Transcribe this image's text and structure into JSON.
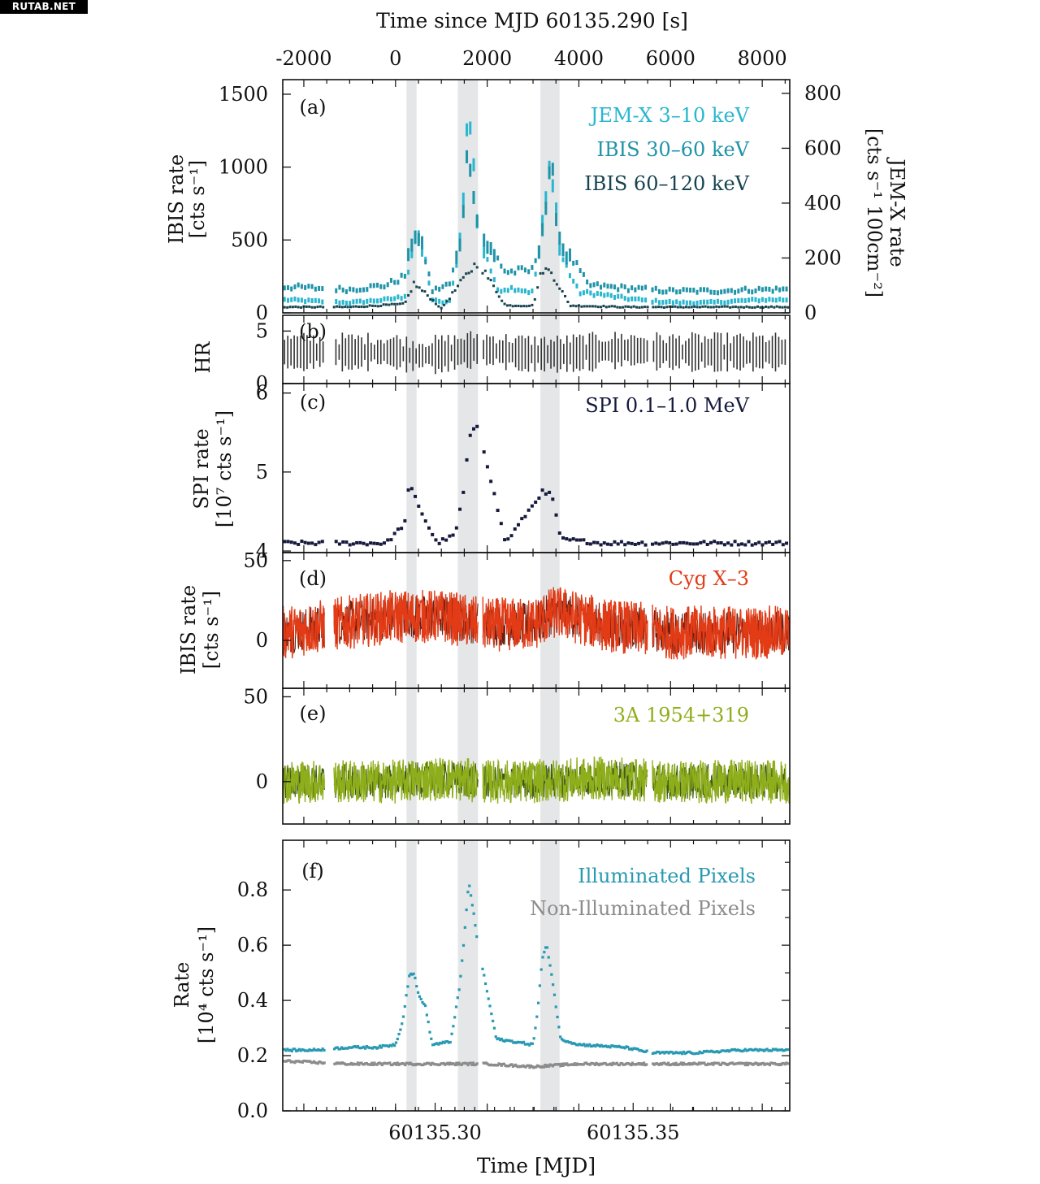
{
  "watermark": "RUTAB.NET",
  "top_axis": {
    "label": "Time since MJD 60135.290 [s]",
    "ticks": [
      "-2000",
      "0",
      "2000",
      "4000",
      "6000",
      "8000"
    ]
  },
  "bottom_axis": {
    "label": "Time [MJD]",
    "ticks": [
      "60135.30",
      "60135.35"
    ]
  },
  "colors": {
    "jemx": "#29b6cf",
    "ibis30": "#1f93a8",
    "ibis60": "#17434f",
    "hr": "#333333",
    "spi": "#161a3c",
    "cyg": "#e23b16",
    "cyg_dark": "#6e1d0f",
    "a1954": "#8fae1b",
    "a1954_dark": "#3f5a12",
    "illum": "#2899b2",
    "nonillum": "#8c8c8c",
    "band": "#e4e6e8"
  },
  "chart_data": [
    {
      "panel": "a",
      "type": "scatter",
      "label": "(a)",
      "ylabel_line1": "IBIS rate",
      "ylabel_line2": "[cts s⁻¹]",
      "yticks": [
        "0",
        "500",
        "1000",
        "1500"
      ],
      "ylim": [
        0,
        1600
      ],
      "right_ylabel_line1": "JEM-X rate",
      "right_ylabel_line2": "[cts s⁻¹ 100cm⁻²]",
      "right_yticks": [
        "0",
        "200",
        "400",
        "600",
        "800"
      ],
      "right_ylim": [
        0,
        850
      ],
      "legend": [
        "JEM-X 3–10 keV",
        "IBIS 30–60 keV",
        "IBIS 60–120 keV"
      ],
      "series": [
        {
          "name": "JEM-X 3–10 keV",
          "x": [
            -2400,
            -1800,
            -1000,
            -600,
            -200,
            200,
            400,
            600,
            800,
            1000,
            1200,
            1400,
            1600,
            1800,
            2200,
            2600,
            3000,
            3200,
            3400,
            3600,
            4000,
            4400,
            5000,
            5600,
            6200,
            6800,
            7400,
            8000,
            8500
          ],
          "y": [
            90,
            80,
            70,
            80,
            90,
            110,
            560,
            450,
            90,
            70,
            80,
            500,
            1450,
            600,
            160,
            170,
            140,
            600,
            1100,
            400,
            140,
            130,
            100,
            80,
            70,
            70,
            80,
            90,
            90
          ]
        },
        {
          "name": "IBIS 30–60 keV",
          "x": [
            -2400,
            -1800,
            -1000,
            -200,
            200,
            400,
            600,
            800,
            1200,
            1400,
            1600,
            1800,
            2400,
            3000,
            3200,
            3400,
            3600,
            4200,
            5000,
            6000,
            7000,
            8000,
            8500
          ],
          "y": [
            180,
            170,
            160,
            190,
            250,
            600,
            450,
            150,
            200,
            500,
            1200,
            600,
            280,
            290,
            600,
            1000,
            500,
            190,
            170,
            150,
            150,
            160,
            160
          ]
        },
        {
          "name": "IBIS 60–120 keV",
          "x": [
            -2400,
            -1000,
            200,
            400,
            700,
            1000,
            1600,
            1800,
            2400,
            3000,
            3200,
            3400,
            3800,
            5000,
            7000,
            8500
          ],
          "y": [
            40,
            40,
            60,
            200,
            120,
            30,
            280,
            350,
            50,
            50,
            300,
            280,
            50,
            40,
            40,
            40
          ]
        }
      ]
    },
    {
      "panel": "b",
      "type": "line",
      "label": "(b)",
      "ylabel": "HR",
      "yticks": [
        "0",
        "5"
      ],
      "ylim": [
        0,
        6.5
      ],
      "series": [
        {
          "name": "",
          "x": [
            -2400,
            -1200,
            0,
            400,
            1200,
            1800,
            2400,
            3000,
            3600,
            4200,
            5000,
            6000,
            7000,
            8500
          ],
          "y": [
            3.0,
            3.0,
            3.0,
            2.6,
            2.9,
            3.3,
            3.0,
            2.8,
            2.8,
            3.0,
            3.2,
            3.0,
            3.0,
            3.0
          ]
        }
      ]
    },
    {
      "panel": "c",
      "type": "scatter",
      "label": "(c)",
      "ylabel_line1": "SPI rate",
      "ylabel_line2": "[10⁷ cts s⁻¹]",
      "yticks": [
        "4",
        "5",
        "6"
      ],
      "ylim": [
        3.98,
        6.12
      ],
      "legend": [
        "SPI 0.1–1.0 MeV"
      ],
      "series": [
        {
          "name": "SPI 0.1–1.0 MeV",
          "x": [
            -2400,
            -1800,
            -1000,
            -200,
            200,
            300,
            450,
            600,
            900,
            1300,
            1500,
            1600,
            1700,
            1800,
            2400,
            3200,
            3300,
            3400,
            3600,
            4500,
            6000,
            8500
          ],
          "y": [
            4.1,
            4.1,
            4.1,
            4.1,
            4.35,
            4.85,
            4.65,
            4.45,
            4.1,
            4.2,
            4.8,
            5.4,
            5.55,
            5.6,
            4.1,
            4.75,
            4.7,
            4.75,
            4.15,
            4.1,
            4.1,
            4.1
          ]
        }
      ]
    },
    {
      "panel": "d",
      "type": "line",
      "label": "(d)",
      "ylabel_line1": "IBIS rate",
      "ylabel_line2": "[cts s⁻¹]",
      "yticks": [
        "0",
        "50"
      ],
      "ylim": [
        -30,
        55
      ],
      "legend": [
        "Cyg X–3"
      ],
      "series": [
        {
          "name": "Cyg X–3",
          "x": [
            -2400,
            -1400,
            0,
            1000,
            2000,
            3000,
            3500,
            4500,
            6000,
            7500,
            8500
          ],
          "y": [
            5,
            10,
            15,
            15,
            10,
            10,
            18,
            10,
            5,
            5,
            5
          ]
        }
      ]
    },
    {
      "panel": "e",
      "type": "line",
      "label": "(e)",
      "ylabel": "",
      "yticks": [
        "0",
        "50"
      ],
      "ylim": [
        -25,
        55
      ],
      "legend": [
        "3A 1954+319"
      ],
      "series": [
        {
          "name": "3A 1954+319",
          "x": [
            -2400,
            -1400,
            0,
            1000,
            2000,
            3000,
            4500,
            6000,
            7500,
            8500
          ],
          "y": [
            0,
            0,
            0,
            2,
            0,
            0,
            2,
            0,
            0,
            0
          ]
        }
      ]
    },
    {
      "panel": "f",
      "type": "scatter",
      "label": "(f)",
      "ylabel_line1": "Rate",
      "ylabel_line2": "[10⁴ cts s⁻¹]",
      "yticks": [
        "0.0",
        "0.2",
        "0.4",
        "0.6",
        "0.8"
      ],
      "ylim": [
        0,
        0.98
      ],
      "legend": [
        "Illuminated Pixels",
        "Non-Illuminated Pixels"
      ],
      "series": [
        {
          "name": "Illuminated Pixels",
          "x": [
            -2400,
            -1800,
            -1000,
            -400,
            0,
            150,
            300,
            400,
            500,
            650,
            800,
            1200,
            1400,
            1500,
            1600,
            1700,
            1800,
            2200,
            3000,
            3100,
            3200,
            3300,
            3400,
            3600,
            4000,
            5000,
            5600,
            6500,
            7500,
            8500
          ],
          "y": [
            0.22,
            0.22,
            0.23,
            0.23,
            0.24,
            0.32,
            0.49,
            0.5,
            0.42,
            0.38,
            0.24,
            0.25,
            0.45,
            0.63,
            0.83,
            0.72,
            0.6,
            0.26,
            0.24,
            0.36,
            0.55,
            0.6,
            0.5,
            0.26,
            0.24,
            0.23,
            0.21,
            0.21,
            0.22,
            0.22
          ]
        },
        {
          "name": "Non-Illuminated Pixels",
          "x": [
            -2400,
            -1000,
            0,
            1000,
            2000,
            3000,
            4000,
            5000,
            6000,
            7000,
            8500
          ],
          "y": [
            0.18,
            0.17,
            0.17,
            0.17,
            0.17,
            0.16,
            0.17,
            0.17,
            0.17,
            0.17,
            0.17
          ]
        }
      ]
    }
  ]
}
